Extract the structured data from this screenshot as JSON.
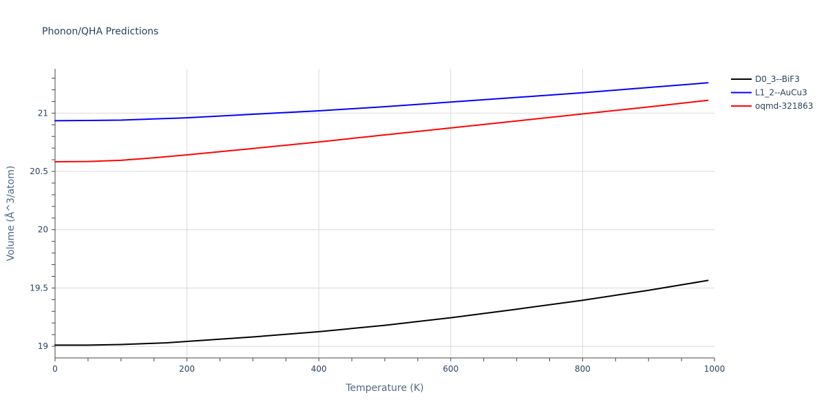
{
  "chart_data": {
    "type": "line",
    "title": "Phonon/QHA Predictions",
    "xlabel": "Temperature (K)",
    "ylabel": "Volume (Å^3/atom)",
    "xlim": [
      0,
      1000
    ],
    "ylim": [
      18.9,
      21.38
    ],
    "x_ticks": [
      0,
      200,
      400,
      600,
      800,
      1000
    ],
    "y_ticks": [
      19,
      19.5,
      20,
      20.5,
      21
    ],
    "x_tick_labels": [
      "0",
      "200",
      "400",
      "600",
      "800",
      "1000"
    ],
    "y_tick_labels": [
      "19",
      "19.5",
      "20",
      "20.5",
      "21"
    ],
    "grid": true,
    "legend_position": "top-right",
    "series": [
      {
        "name": "D0_3--BiF3",
        "color": "#000000",
        "x": [
          0,
          50,
          100,
          170,
          200,
          300,
          400,
          500,
          600,
          700,
          800,
          900,
          990
        ],
        "values": [
          19.01,
          19.01,
          19.015,
          19.03,
          19.042,
          19.08,
          19.125,
          19.18,
          19.245,
          19.318,
          19.395,
          19.48,
          19.565
        ]
      },
      {
        "name": "L1_2--AuCu3",
        "color": "#0000ff",
        "x": [
          0,
          50,
          100,
          150,
          200,
          300,
          400,
          500,
          600,
          700,
          800,
          900,
          990
        ],
        "values": [
          20.935,
          20.937,
          20.94,
          20.95,
          20.96,
          20.99,
          21.02,
          21.055,
          21.095,
          21.135,
          21.175,
          21.22,
          21.26
        ]
      },
      {
        "name": "oqmd-321863",
        "color": "#ff0000",
        "x": [
          0,
          50,
          100,
          150,
          200,
          300,
          400,
          500,
          600,
          700,
          800,
          900,
          990
        ],
        "values": [
          20.583,
          20.585,
          20.595,
          20.617,
          20.642,
          20.697,
          20.753,
          20.813,
          20.873,
          20.933,
          20.993,
          21.053,
          21.11
        ]
      }
    ]
  }
}
